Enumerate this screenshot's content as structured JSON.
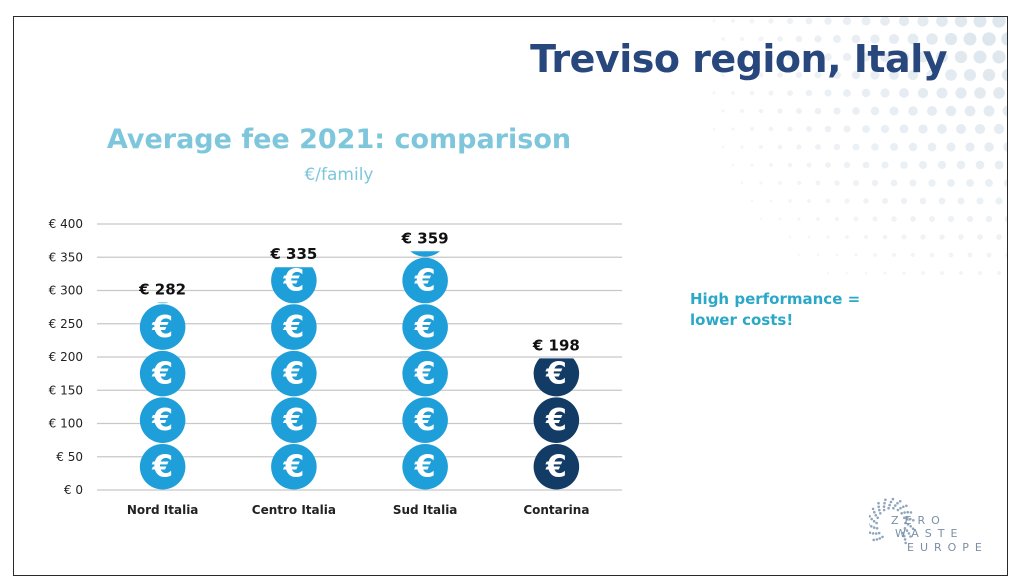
{
  "slide": {
    "title": "Treviso region, Italy",
    "note": "High performance = lower costs!",
    "logo": {
      "line1": "ZERO",
      "line2": "WASTE",
      "line3": "EUROPE"
    }
  },
  "chart_data": {
    "type": "bar",
    "title": "Average fee 2021: comparison",
    "subtitle": "€/family",
    "categories": [
      "Nord Italia",
      "Centro Italia",
      "Sud Italia",
      "Contarina"
    ],
    "values": [
      282,
      335,
      359,
      198
    ],
    "value_labels": [
      "€ 282",
      "€ 335",
      "€ 359",
      "€ 198"
    ],
    "ylim": [
      0,
      400
    ],
    "yticks": [
      0,
      50,
      100,
      150,
      200,
      250,
      300,
      350,
      400
    ],
    "ytick_labels": [
      "€ 0",
      "€ 50",
      "€ 100",
      "€ 150",
      "€ 200",
      "€ 250",
      "€ 300",
      "€ 350",
      "€ 400"
    ],
    "unit_per_icon": 70,
    "icon_symbol": "€",
    "grid": true,
    "colors": [
      "#1f9fd9",
      "#1f9fd9",
      "#1f9fd9",
      "#123c66"
    ],
    "grid_color": "#c8c8c8"
  }
}
